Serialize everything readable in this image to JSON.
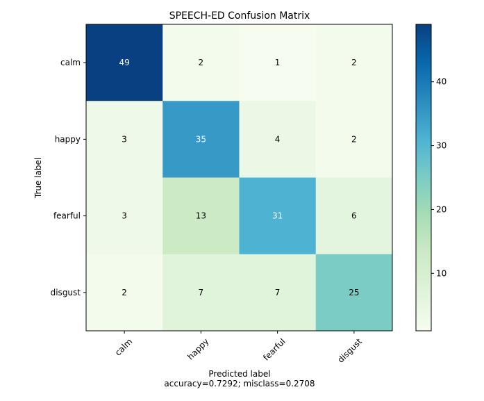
{
  "chart_data": {
    "type": "heatmap",
    "title": "SPEECH-ED Confusion Matrix",
    "xlabel": "Predicted label",
    "xlabel_sub": "accuracy=0.7292; misclass=0.2708",
    "ylabel": "True label",
    "x_categories": [
      "calm",
      "happy",
      "fearful",
      "disgust"
    ],
    "y_categories": [
      "calm",
      "happy",
      "fearful",
      "disgust"
    ],
    "values": [
      [
        49,
        2,
        1,
        2
      ],
      [
        3,
        35,
        4,
        2
      ],
      [
        3,
        13,
        31,
        6
      ],
      [
        2,
        7,
        7,
        25
      ]
    ],
    "colormap": "GnBu",
    "vmin": 1,
    "vmax": 49,
    "colorbar_ticks": [
      10,
      20,
      30,
      40
    ]
  }
}
